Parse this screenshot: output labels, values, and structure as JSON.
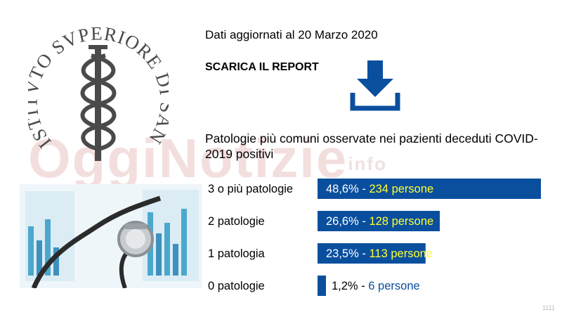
{
  "header": {
    "date_text": "Dati aggiornati al 20 Marzo 2020",
    "report_label": "SCARICA IL REPORT"
  },
  "logo": {
    "text": "ISTITVTO SVPERIORE DI SANITA",
    "color": "#4a4a4a"
  },
  "watermark": {
    "text": "OggiNotizie",
    "suffix": "info"
  },
  "icons": {
    "download": "download-icon",
    "photo": "stethoscope-photo"
  },
  "colors": {
    "bar": "#0a4f9e",
    "highlight": "#ffff33",
    "dark_label": "#000000",
    "blue_label": "#0a4f9e"
  },
  "page_number": "1111",
  "chart_data": {
    "type": "bar",
    "orientation": "horizontal",
    "title": "Patologie più comuni osservate nei pazienti deceduti COVID-2019 positivi",
    "categories": [
      "3 o più patologie",
      "2 patologie",
      "1 patologia",
      "0 patologie"
    ],
    "values": [
      48.6,
      26.6,
      23.5,
      1.2
    ],
    "percent_labels": [
      "48,6% - ",
      "26,6% - ",
      "23,5%  - ",
      "1,2%   - "
    ],
    "persons_labels": [
      "234 persone",
      "128 persone",
      "113 persone",
      "6 persone"
    ],
    "persons": [
      234,
      128,
      113,
      6
    ],
    "unit": "%"
  }
}
